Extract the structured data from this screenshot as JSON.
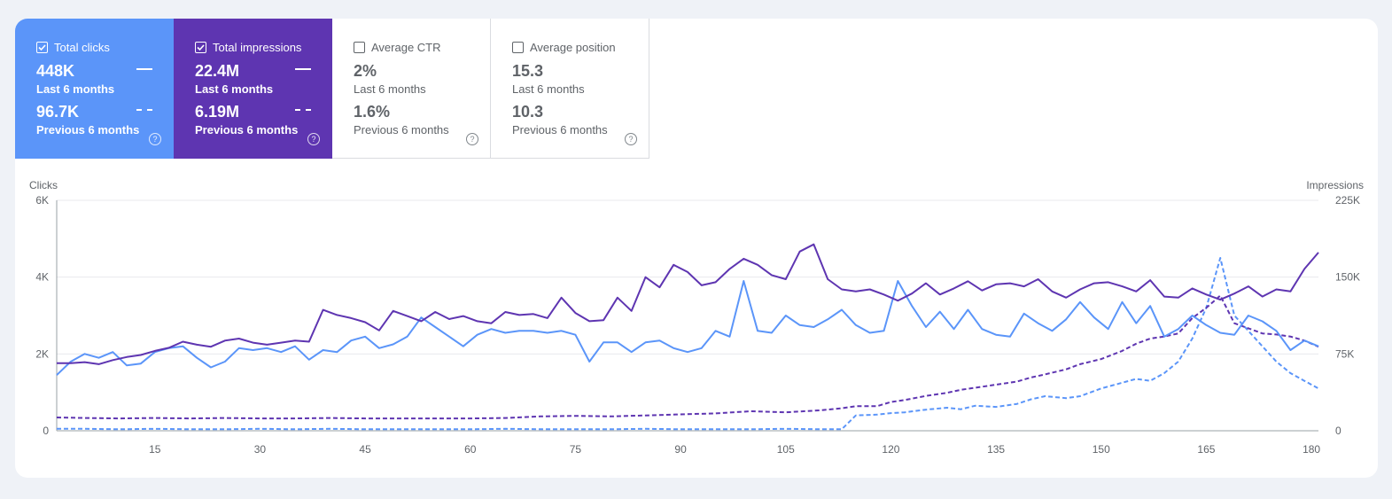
{
  "metrics": [
    {
      "label": "Total clicks",
      "checked": true,
      "value_current": "448K",
      "period_current": "Last 6 months",
      "value_previous": "96.7K",
      "period_previous": "Previous 6 months",
      "help": "?"
    },
    {
      "label": "Total impressions",
      "checked": true,
      "value_current": "22.4M",
      "period_current": "Last 6 months",
      "value_previous": "6.19M",
      "period_previous": "Previous 6 months",
      "help": "?"
    },
    {
      "label": "Average CTR",
      "checked": false,
      "value_current": "2%",
      "period_current": "Last 6 months",
      "value_previous": "1.6%",
      "period_previous": "Previous 6 months",
      "help": "?"
    },
    {
      "label": "Average position",
      "checked": false,
      "value_current": "15.3",
      "period_current": "Last 6 months",
      "value_previous": "10.3",
      "period_previous": "Previous 6 months",
      "help": "?"
    }
  ],
  "colors": {
    "clicks": "#5b95f9",
    "impressions": "#5e35b1",
    "grid": "#e8eaed",
    "axis": "#5f6368"
  },
  "chart_data": {
    "type": "line",
    "ylabel_left": "Clicks",
    "ylabel_right": "Impressions",
    "left_ticks": [
      "0",
      "2K",
      "4K",
      "6K"
    ],
    "right_ticks": [
      "0",
      "75K",
      "150K",
      "225K"
    ],
    "ylim_left": [
      0,
      6000
    ],
    "ylim_right": [
      0,
      225000
    ],
    "x_ticks": [
      "15",
      "30",
      "45",
      "60",
      "75",
      "90",
      "105",
      "120",
      "135",
      "150",
      "165",
      "180"
    ],
    "xlim": [
      1,
      181
    ],
    "grid": true,
    "series": [
      {
        "key": "clicks_current",
        "axis": "left",
        "style": "solid",
        "color": "#5b95f9",
        "points": [
          [
            1,
            1450
          ],
          [
            3,
            1800
          ],
          [
            5,
            2000
          ],
          [
            7,
            1900
          ],
          [
            9,
            2050
          ],
          [
            11,
            1700
          ],
          [
            13,
            1750
          ],
          [
            15,
            2050
          ],
          [
            17,
            2150
          ],
          [
            19,
            2200
          ],
          [
            21,
            1900
          ],
          [
            23,
            1650
          ],
          [
            25,
            1800
          ],
          [
            27,
            2150
          ],
          [
            29,
            2100
          ],
          [
            31,
            2150
          ],
          [
            33,
            2050
          ],
          [
            35,
            2200
          ],
          [
            37,
            1850
          ],
          [
            39,
            2100
          ],
          [
            41,
            2050
          ],
          [
            43,
            2350
          ],
          [
            45,
            2450
          ],
          [
            47,
            2150
          ],
          [
            49,
            2250
          ],
          [
            51,
            2450
          ],
          [
            53,
            2950
          ],
          [
            55,
            2700
          ],
          [
            57,
            2450
          ],
          [
            59,
            2200
          ],
          [
            61,
            2500
          ],
          [
            63,
            2650
          ],
          [
            65,
            2550
          ],
          [
            67,
            2600
          ],
          [
            69,
            2600
          ],
          [
            71,
            2550
          ],
          [
            73,
            2600
          ],
          [
            75,
            2500
          ],
          [
            77,
            1800
          ],
          [
            79,
            2300
          ],
          [
            81,
            2300
          ],
          [
            83,
            2050
          ],
          [
            85,
            2300
          ],
          [
            87,
            2350
          ],
          [
            89,
            2150
          ],
          [
            91,
            2050
          ],
          [
            93,
            2150
          ],
          [
            95,
            2600
          ],
          [
            97,
            2450
          ],
          [
            99,
            3900
          ],
          [
            101,
            2600
          ],
          [
            103,
            2550
          ],
          [
            105,
            3000
          ],
          [
            107,
            2750
          ],
          [
            109,
            2700
          ],
          [
            111,
            2900
          ],
          [
            113,
            3150
          ],
          [
            115,
            2750
          ],
          [
            117,
            2550
          ],
          [
            119,
            2600
          ],
          [
            121,
            3900
          ],
          [
            123,
            3250
          ],
          [
            125,
            2700
          ],
          [
            127,
            3100
          ],
          [
            129,
            2650
          ],
          [
            131,
            3150
          ],
          [
            133,
            2650
          ],
          [
            135,
            2500
          ],
          [
            137,
            2450
          ],
          [
            139,
            3050
          ],
          [
            141,
            2800
          ],
          [
            143,
            2600
          ],
          [
            145,
            2900
          ],
          [
            147,
            3350
          ],
          [
            149,
            2950
          ],
          [
            151,
            2650
          ],
          [
            153,
            3350
          ],
          [
            155,
            2800
          ],
          [
            157,
            3250
          ],
          [
            159,
            2450
          ],
          [
            161,
            2650
          ],
          [
            163,
            3000
          ],
          [
            165,
            2750
          ],
          [
            167,
            2550
          ],
          [
            169,
            2500
          ],
          [
            171,
            3000
          ],
          [
            173,
            2850
          ],
          [
            175,
            2600
          ],
          [
            177,
            2100
          ],
          [
            179,
            2350
          ],
          [
            181,
            2200
          ]
        ]
      },
      {
        "key": "impressions_current",
        "axis": "right",
        "style": "solid",
        "color": "#5e35b1",
        "points": [
          [
            1,
            66000
          ],
          [
            3,
            66000
          ],
          [
            5,
            67000
          ],
          [
            7,
            65000
          ],
          [
            9,
            69000
          ],
          [
            11,
            72000
          ],
          [
            13,
            74000
          ],
          [
            15,
            78000
          ],
          [
            17,
            81000
          ],
          [
            19,
            87000
          ],
          [
            21,
            84000
          ],
          [
            23,
            82000
          ],
          [
            25,
            88000
          ],
          [
            27,
            90000
          ],
          [
            29,
            86000
          ],
          [
            31,
            84000
          ],
          [
            33,
            86000
          ],
          [
            35,
            88000
          ],
          [
            37,
            87000
          ],
          [
            39,
            118000
          ],
          [
            41,
            113000
          ],
          [
            43,
            110000
          ],
          [
            45,
            106000
          ],
          [
            47,
            98000
          ],
          [
            49,
            117000
          ],
          [
            51,
            112000
          ],
          [
            53,
            107000
          ],
          [
            55,
            116000
          ],
          [
            57,
            109000
          ],
          [
            59,
            112000
          ],
          [
            61,
            107000
          ],
          [
            63,
            105000
          ],
          [
            65,
            116000
          ],
          [
            67,
            113000
          ],
          [
            69,
            114000
          ],
          [
            71,
            110000
          ],
          [
            73,
            130000
          ],
          [
            75,
            115000
          ],
          [
            77,
            107000
          ],
          [
            79,
            108000
          ],
          [
            81,
            130000
          ],
          [
            83,
            117000
          ],
          [
            85,
            150000
          ],
          [
            87,
            140000
          ],
          [
            89,
            162000
          ],
          [
            91,
            155000
          ],
          [
            93,
            142000
          ],
          [
            95,
            145000
          ],
          [
            97,
            158000
          ],
          [
            99,
            168000
          ],
          [
            101,
            162000
          ],
          [
            103,
            152000
          ],
          [
            105,
            148000
          ],
          [
            107,
            175000
          ],
          [
            109,
            182000
          ],
          [
            111,
            148000
          ],
          [
            113,
            138000
          ],
          [
            115,
            136000
          ],
          [
            117,
            138000
          ],
          [
            119,
            133000
          ],
          [
            121,
            127000
          ],
          [
            123,
            134000
          ],
          [
            125,
            144000
          ],
          [
            127,
            133000
          ],
          [
            129,
            139000
          ],
          [
            131,
            146000
          ],
          [
            133,
            137000
          ],
          [
            135,
            143000
          ],
          [
            137,
            144000
          ],
          [
            139,
            141000
          ],
          [
            141,
            148000
          ],
          [
            143,
            136000
          ],
          [
            145,
            130000
          ],
          [
            147,
            138000
          ],
          [
            149,
            144000
          ],
          [
            151,
            145000
          ],
          [
            153,
            141000
          ],
          [
            155,
            136000
          ],
          [
            157,
            147000
          ],
          [
            159,
            131000
          ],
          [
            161,
            130000
          ],
          [
            163,
            139000
          ],
          [
            165,
            133000
          ],
          [
            167,
            128000
          ],
          [
            169,
            134000
          ],
          [
            171,
            141000
          ],
          [
            173,
            131000
          ],
          [
            175,
            138000
          ],
          [
            177,
            136000
          ],
          [
            179,
            158000
          ],
          [
            181,
            174000
          ]
        ]
      },
      {
        "key": "clicks_previous",
        "axis": "left",
        "style": "dashed",
        "color": "#5b95f9",
        "points": [
          [
            1,
            50
          ],
          [
            5,
            50
          ],
          [
            10,
            40
          ],
          [
            15,
            50
          ],
          [
            20,
            40
          ],
          [
            25,
            40
          ],
          [
            30,
            50
          ],
          [
            35,
            40
          ],
          [
            40,
            50
          ],
          [
            45,
            40
          ],
          [
            50,
            40
          ],
          [
            55,
            40
          ],
          [
            60,
            40
          ],
          [
            65,
            50
          ],
          [
            70,
            40
          ],
          [
            75,
            40
          ],
          [
            80,
            40
          ],
          [
            85,
            50
          ],
          [
            90,
            40
          ],
          [
            95,
            40
          ],
          [
            100,
            40
          ],
          [
            105,
            50
          ],
          [
            110,
            40
          ],
          [
            113,
            40
          ],
          [
            115,
            400
          ],
          [
            118,
            420
          ],
          [
            120,
            460
          ],
          [
            122,
            480
          ],
          [
            125,
            550
          ],
          [
            128,
            600
          ],
          [
            130,
            560
          ],
          [
            132,
            650
          ],
          [
            135,
            620
          ],
          [
            138,
            700
          ],
          [
            140,
            820
          ],
          [
            142,
            900
          ],
          [
            145,
            850
          ],
          [
            147,
            900
          ],
          [
            150,
            1100
          ],
          [
            153,
            1250
          ],
          [
            155,
            1350
          ],
          [
            157,
            1300
          ],
          [
            159,
            1500
          ],
          [
            161,
            1800
          ],
          [
            163,
            2400
          ],
          [
            165,
            3200
          ],
          [
            167,
            4500
          ],
          [
            169,
            3000
          ],
          [
            171,
            2600
          ],
          [
            173,
            2200
          ],
          [
            175,
            1800
          ],
          [
            177,
            1500
          ],
          [
            179,
            1300
          ],
          [
            181,
            1100
          ]
        ]
      },
      {
        "key": "impressions_previous",
        "axis": "right",
        "style": "dashed",
        "color": "#5e35b1",
        "points": [
          [
            1,
            13000
          ],
          [
            5,
            12500
          ],
          [
            10,
            12000
          ],
          [
            15,
            12500
          ],
          [
            20,
            12000
          ],
          [
            25,
            12500
          ],
          [
            30,
            12000
          ],
          [
            35,
            12000
          ],
          [
            40,
            12500
          ],
          [
            45,
            12000
          ],
          [
            50,
            12000
          ],
          [
            55,
            12000
          ],
          [
            60,
            12000
          ],
          [
            65,
            12500
          ],
          [
            70,
            14000
          ],
          [
            75,
            14500
          ],
          [
            80,
            14000
          ],
          [
            85,
            15000
          ],
          [
            90,
            16000
          ],
          [
            95,
            17000
          ],
          [
            100,
            19000
          ],
          [
            105,
            18000
          ],
          [
            110,
            20000
          ],
          [
            113,
            22000
          ],
          [
            115,
            24000
          ],
          [
            118,
            24000
          ],
          [
            120,
            28000
          ],
          [
            122,
            30000
          ],
          [
            125,
            34000
          ],
          [
            128,
            37000
          ],
          [
            130,
            40000
          ],
          [
            132,
            42000
          ],
          [
            135,
            45000
          ],
          [
            138,
            48000
          ],
          [
            140,
            52000
          ],
          [
            142,
            55000
          ],
          [
            145,
            60000
          ],
          [
            147,
            65000
          ],
          [
            150,
            70000
          ],
          [
            153,
            78000
          ],
          [
            155,
            85000
          ],
          [
            157,
            90000
          ],
          [
            159,
            92000
          ],
          [
            161,
            95000
          ],
          [
            163,
            110000
          ],
          [
            165,
            120000
          ],
          [
            167,
            132000
          ],
          [
            169,
            105000
          ],
          [
            171,
            100000
          ],
          [
            173,
            95000
          ],
          [
            175,
            94000
          ],
          [
            177,
            92000
          ],
          [
            179,
            88000
          ],
          [
            181,
            82000
          ]
        ]
      }
    ]
  }
}
